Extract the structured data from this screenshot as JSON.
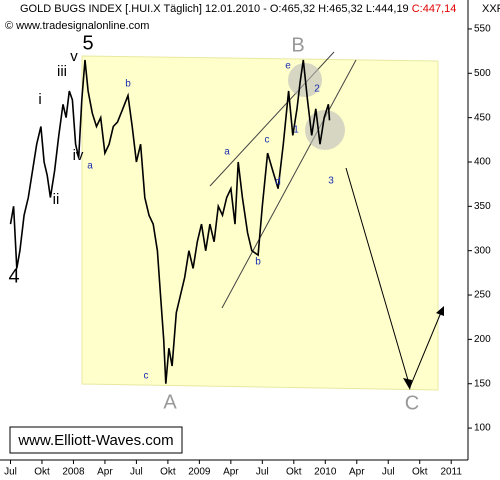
{
  "chart_data": {
    "type": "line",
    "title": "GOLD BUGS INDEX [.HUI.X  Täglich] 12.01.2010 - O:465,32 H:465,32 L:444,19 ",
    "close_label": "C:447,14",
    "subtitle": "© www.tradesignalonline.com",
    "corner_label": "XXF",
    "watermark": "www.Elliott-Waves.com",
    "color": "#000000",
    "x": [
      0,
      0.3,
      0.6,
      0.9,
      1.3,
      1.7,
      2.1,
      2.5,
      2.9,
      3.2,
      3.5,
      3.8,
      4.2,
      4.6,
      5.0,
      5.3,
      5.6,
      5.9,
      6.2,
      6.5,
      6.8,
      7.1,
      7.4,
      7.8,
      8.2,
      8.6,
      9.0,
      9.4,
      9.8,
      10.2,
      10.7,
      11.2,
      11.6,
      12.0,
      12.4,
      12.8,
      13.2,
      13.6,
      14.0,
      14.3,
      14.6,
      14.8,
      15.1,
      15.4,
      15.8,
      16.2,
      16.6,
      17.0,
      17.4,
      17.8,
      18.2,
      18.6,
      19.0,
      19.4,
      19.8,
      20.2,
      20.6,
      21.0,
      21.4,
      21.7,
      22.1,
      22.6,
      23.0,
      23.6,
      24.0,
      24.5,
      25.0,
      25.5,
      26.0,
      26.5,
      26.9,
      27.3,
      27.6,
      27.9,
      28.3,
      28.7,
      29.1,
      29.5,
      29.9,
      30.3,
      30.4
    ],
    "values": [
      330,
      350,
      280,
      300,
      340,
      360,
      390,
      420,
      440,
      400,
      385,
      360,
      390,
      430,
      465,
      450,
      480,
      470,
      420,
      405,
      470,
      515,
      480,
      455,
      440,
      450,
      410,
      420,
      440,
      445,
      460,
      475,
      440,
      400,
      420,
      360,
      340,
      330,
      300,
      250,
      200,
      150,
      190,
      170,
      230,
      250,
      270,
      300,
      280,
      310,
      330,
      300,
      330,
      310,
      350,
      340,
      360,
      370,
      330,
      400,
      360,
      320,
      300,
      295,
      350,
      410,
      390,
      370,
      420,
      480,
      430,
      460,
      490,
      515,
      470,
      430,
      460,
      420,
      450,
      465,
      447
    ],
    "annotations": [
      "5",
      "iii",
      "i",
      "v",
      "iv",
      "ii",
      "4",
      "a",
      "b",
      "c",
      "a",
      "b",
      "c",
      "d",
      "e",
      "1",
      "2",
      "3",
      "A",
      "B",
      "C"
    ],
    "xlim": [
      -1,
      43.6
    ],
    "ylim": [
      64,
      577
    ],
    "xticks": [
      {
        "value": 0,
        "label": "Jul"
      },
      {
        "value": 3,
        "label": "Okt"
      },
      {
        "value": 6,
        "label": "2008"
      },
      {
        "value": 9,
        "label": "Apr"
      },
      {
        "value": 12,
        "label": "Jul"
      },
      {
        "value": 15,
        "label": "Okt"
      },
      {
        "value": 18,
        "label": "2009"
      },
      {
        "value": 21,
        "label": "Apr"
      },
      {
        "value": 24,
        "label": "Jul"
      },
      {
        "value": 27,
        "label": "Okt"
      },
      {
        "value": 30,
        "label": "2010"
      },
      {
        "value": 33,
        "label": "Apr"
      },
      {
        "value": 36,
        "label": "Jul"
      },
      {
        "value": 39,
        "label": "Okt"
      },
      {
        "value": 42,
        "label": "2011"
      }
    ],
    "yticks": [
      100,
      150,
      200,
      250,
      300,
      350,
      400,
      450,
      500,
      550
    ]
  }
}
